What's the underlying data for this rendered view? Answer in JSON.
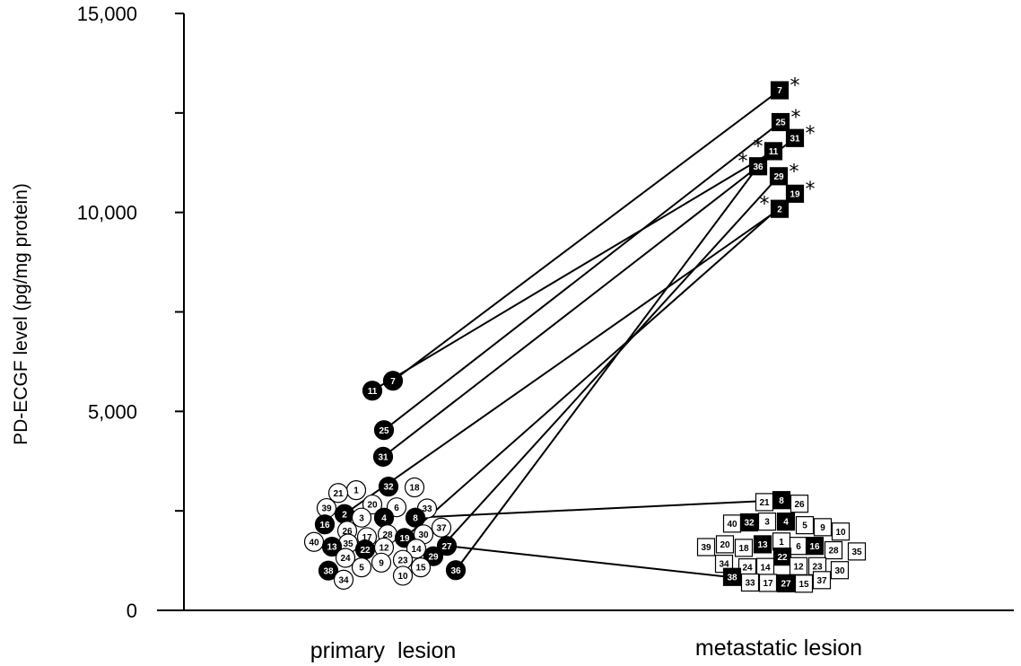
{
  "chart_data": {
    "type": "scatter",
    "title": "",
    "ylabel": "PD-ECGF level (pg/mg protein)",
    "xlabel": "",
    "ylim": [
      0,
      15000
    ],
    "y_ticks": [
      0,
      2500,
      5000,
      7500,
      10000,
      12500,
      15000
    ],
    "y_tick_labels": [
      "0",
      "",
      "5,000",
      "",
      "10,000",
      "",
      "15,000"
    ],
    "categories": [
      "primary  lesion",
      "metastatic lesion"
    ],
    "grid": false,
    "legend": "none",
    "significance_marker": "*",
    "primary_lesion": [
      {
        "id": "7",
        "value": 5770,
        "filled": true
      },
      {
        "id": "11",
        "value": 5520,
        "filled": true
      },
      {
        "id": "25",
        "value": 4530,
        "filled": true
      },
      {
        "id": "31",
        "value": 3860,
        "filled": true
      },
      {
        "id": "1",
        "value": 3020,
        "filled": false
      },
      {
        "id": "21",
        "value": 2950,
        "filled": false
      },
      {
        "id": "32",
        "value": 3110,
        "filled": true
      },
      {
        "id": "18",
        "value": 3090,
        "filled": false
      },
      {
        "id": "20",
        "value": 2660,
        "filled": false
      },
      {
        "id": "6",
        "value": 2590,
        "filled": false
      },
      {
        "id": "33",
        "value": 2560,
        "filled": false
      },
      {
        "id": "39",
        "value": 2570,
        "filled": false
      },
      {
        "id": "2",
        "value": 2420,
        "filled": true
      },
      {
        "id": "3",
        "value": 2330,
        "filled": false
      },
      {
        "id": "4",
        "value": 2330,
        "filled": true
      },
      {
        "id": "8",
        "value": 2330,
        "filled": true
      },
      {
        "id": "16",
        "value": 2160,
        "filled": true
      },
      {
        "id": "37",
        "value": 2080,
        "filled": false
      },
      {
        "id": "26",
        "value": 2000,
        "filled": false
      },
      {
        "id": "17",
        "value": 1840,
        "filled": false
      },
      {
        "id": "28",
        "value": 1910,
        "filled": false
      },
      {
        "id": "30",
        "value": 1910,
        "filled": false
      },
      {
        "id": "19",
        "value": 1820,
        "filled": true
      },
      {
        "id": "40",
        "value": 1720,
        "filled": false
      },
      {
        "id": "35",
        "value": 1680,
        "filled": false
      },
      {
        "id": "13",
        "value": 1600,
        "filled": true
      },
      {
        "id": "22",
        "value": 1530,
        "filled": true
      },
      {
        "id": "12",
        "value": 1580,
        "filled": false
      },
      {
        "id": "14",
        "value": 1550,
        "filled": false
      },
      {
        "id": "27",
        "value": 1620,
        "filled": true
      },
      {
        "id": "24",
        "value": 1320,
        "filled": false
      },
      {
        "id": "9",
        "value": 1200,
        "filled": false
      },
      {
        "id": "23",
        "value": 1270,
        "filled": false
      },
      {
        "id": "29",
        "value": 1360,
        "filled": true
      },
      {
        "id": "5",
        "value": 1080,
        "filled": false
      },
      {
        "id": "15",
        "value": 1080,
        "filled": false
      },
      {
        "id": "38",
        "value": 1000,
        "filled": true
      },
      {
        "id": "10",
        "value": 870,
        "filled": false
      },
      {
        "id": "36",
        "value": 1010,
        "filled": true
      },
      {
        "id": "34",
        "value": 770,
        "filled": false
      }
    ],
    "metastatic_lesion": [
      {
        "id": "7",
        "value": 13070,
        "filled": true,
        "significant": true
      },
      {
        "id": "25",
        "value": 12270,
        "filled": true,
        "significant": true
      },
      {
        "id": "31",
        "value": 11870,
        "filled": true,
        "significant": true
      },
      {
        "id": "11",
        "value": 11540,
        "filled": true,
        "significant": true
      },
      {
        "id": "36",
        "value": 11160,
        "filled": true,
        "significant": true
      },
      {
        "id": "29",
        "value": 10910,
        "filled": true,
        "significant": true
      },
      {
        "id": "19",
        "value": 10470,
        "filled": true,
        "significant": true
      },
      {
        "id": "2",
        "value": 10090,
        "filled": true,
        "significant": true
      },
      {
        "id": "21",
        "value": 2720,
        "filled": false
      },
      {
        "id": "8",
        "value": 2770,
        "filled": true
      },
      {
        "id": "26",
        "value": 2680,
        "filled": false
      },
      {
        "id": "40",
        "value": 2180,
        "filled": false
      },
      {
        "id": "32",
        "value": 2210,
        "filled": true
      },
      {
        "id": "3",
        "value": 2230,
        "filled": false
      },
      {
        "id": "4",
        "value": 2230,
        "filled": true
      },
      {
        "id": "5",
        "value": 2140,
        "filled": false
      },
      {
        "id": "9",
        "value": 2090,
        "filled": false
      },
      {
        "id": "10",
        "value": 1980,
        "filled": false
      },
      {
        "id": "39",
        "value": 1590,
        "filled": false
      },
      {
        "id": "20",
        "value": 1660,
        "filled": false
      },
      {
        "id": "18",
        "value": 1570,
        "filled": false
      },
      {
        "id": "13",
        "value": 1660,
        "filled": true
      },
      {
        "id": "1",
        "value": 1730,
        "filled": false
      },
      {
        "id": "6",
        "value": 1620,
        "filled": false
      },
      {
        "id": "16",
        "value": 1620,
        "filled": true
      },
      {
        "id": "28",
        "value": 1510,
        "filled": false
      },
      {
        "id": "35",
        "value": 1480,
        "filled": false
      },
      {
        "id": "22",
        "value": 1350,
        "filled": true
      },
      {
        "id": "34",
        "value": 1170,
        "filled": false
      },
      {
        "id": "24",
        "value": 1080,
        "filled": false
      },
      {
        "id": "14",
        "value": 1090,
        "filled": false
      },
      {
        "id": "12",
        "value": 1110,
        "filled": false
      },
      {
        "id": "23",
        "value": 1110,
        "filled": false
      },
      {
        "id": "30",
        "value": 1010,
        "filled": false
      },
      {
        "id": "38",
        "value": 840,
        "filled": true
      },
      {
        "id": "33",
        "value": 700,
        "filled": false
      },
      {
        "id": "17",
        "value": 690,
        "filled": false
      },
      {
        "id": "27",
        "value": 680,
        "filled": true
      },
      {
        "id": "15",
        "value": 670,
        "filled": false
      },
      {
        "id": "37",
        "value": 760,
        "filled": false
      }
    ],
    "paired_lines": [
      "7",
      "11",
      "25",
      "31",
      "2",
      "8",
      "19",
      "27",
      "29",
      "36"
    ]
  }
}
